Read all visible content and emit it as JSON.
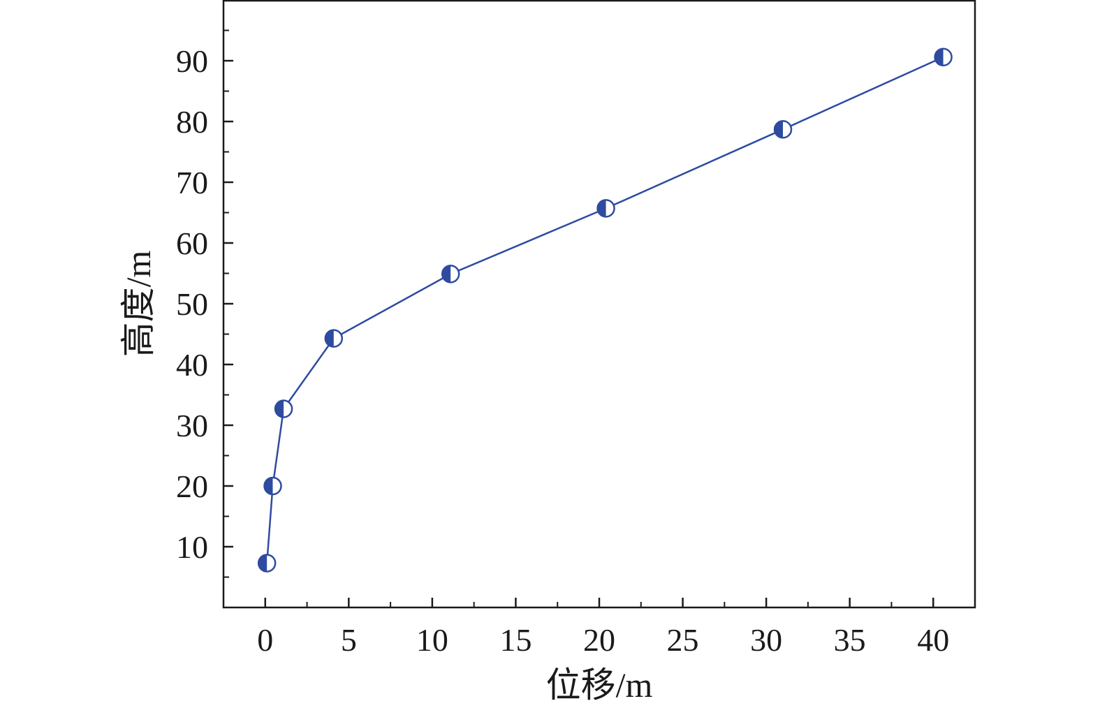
{
  "chart_data": {
    "type": "line",
    "title": "",
    "xlabel": "位移/m",
    "ylabel": "高度/m",
    "xlim": [
      -2.5,
      42.5
    ],
    "ylim": [
      0,
      100
    ],
    "x_ticks": [
      0,
      5,
      10,
      15,
      20,
      25,
      30,
      35,
      40
    ],
    "y_ticks": [
      10,
      20,
      30,
      40,
      50,
      60,
      70,
      80,
      90
    ],
    "x_tick_labels": [
      "0",
      "5",
      "10",
      "15",
      "20",
      "25",
      "30",
      "35",
      "40"
    ],
    "y_tick_labels": [
      "10",
      "20",
      "30",
      "40",
      "50",
      "60",
      "70",
      "80",
      "90"
    ],
    "grid": false,
    "legend": "none",
    "marker": "half-filled-circle",
    "color": "#2e4ba0",
    "series": [
      {
        "x": [
          0.1,
          0.45,
          1.1,
          4.1,
          11.1,
          20.4,
          31.0,
          40.6
        ],
        "y": [
          7.3,
          20.0,
          32.7,
          44.3,
          54.9,
          65.7,
          78.7,
          90.6
        ]
      }
    ]
  }
}
